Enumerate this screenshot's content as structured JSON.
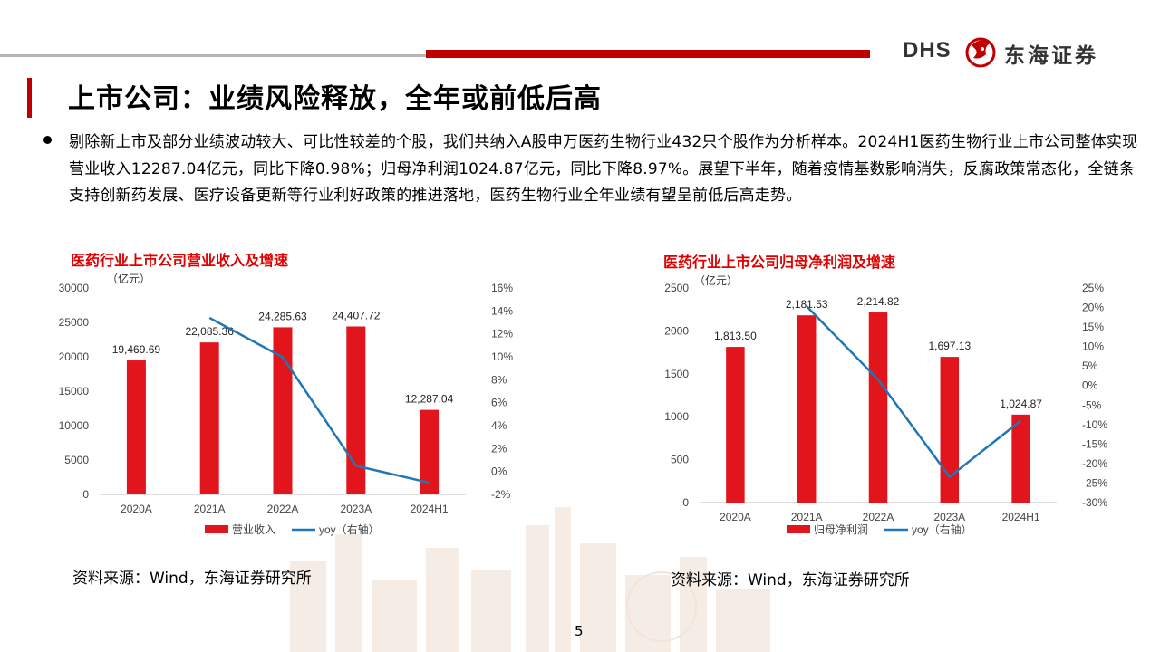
{
  "logo": {
    "brand_en": "DHS",
    "brand_cn": "东海证券"
  },
  "page_title": "上市公司：业绩风险释放，全年或前低后高",
  "bullet_text": "剔除新上市及部分业绩波动较大、可比性较差的个股，我们共纳入A股申万医药生物行业432只个股作为分析样本。2024H1医药生物行业上市公司整体实现营业收入12287.04亿元，同比下降0.98%；归母净利润1024.87亿元，同比下降8.97%。展望下半年，随着疫情基数影响消失，反腐政策常态化，全链条支持创新药发展、医疗设备更新等行业利好政策的推进落地，医药生物行业全年业绩有望呈前低后高走势。",
  "colors": {
    "bar": "#e2141c",
    "line": "#1f77b4",
    "accent": "#c00000"
  },
  "chart_data": [
    {
      "type": "bar",
      "title": "医药行业上市公司营业收入及增速",
      "unit_label": "（亿元）",
      "categories": [
        "2020A",
        "2021A",
        "2022A",
        "2023A",
        "2024H1"
      ],
      "series": [
        {
          "name": "营业收入",
          "type": "bar",
          "axis": "left",
          "values": [
            19469.69,
            22085.36,
            24285.63,
            24407.72,
            12287.04
          ],
          "labels": [
            "19,469.69",
            "22,085.36",
            "24,285.63",
            "24,407.72",
            "12,287.04"
          ]
        },
        {
          "name": "yoy（右轴）",
          "type": "line",
          "axis": "right",
          "values": [
            null,
            13.4,
            9.96,
            0.5,
            -0.98
          ]
        }
      ],
      "ylim_left": [
        0,
        30000
      ],
      "yticks_left": [
        "0",
        "5000",
        "10000",
        "15000",
        "20000",
        "25000",
        "30000"
      ],
      "ylim_right": [
        -2,
        16
      ],
      "yticks_right": [
        "-2%",
        "0%",
        "2%",
        "4%",
        "6%",
        "8%",
        "10%",
        "12%",
        "14%",
        "16%"
      ],
      "legend": "bottom",
      "source": "资料来源：Wind，东海证券研究所"
    },
    {
      "type": "bar",
      "title": "医药行业上市公司归母净利润及增速",
      "unit_label": "（亿元）",
      "categories": [
        "2020A",
        "2021A",
        "2022A",
        "2023A",
        "2024H1"
      ],
      "series": [
        {
          "name": "归母净利润",
          "type": "bar",
          "axis": "left",
          "values": [
            1813.5,
            2181.53,
            2214.82,
            1697.13,
            1024.87
          ],
          "labels": [
            "1,813.50",
            "2,181.53",
            "2,214.82",
            "1,697.13",
            "1,024.87"
          ]
        },
        {
          "name": "yoy（右轴）",
          "type": "line",
          "axis": "right",
          "values": [
            null,
            20.3,
            1.5,
            -23.4,
            -8.97
          ]
        }
      ],
      "ylim_left": [
        0,
        2500
      ],
      "yticks_left": [
        "0",
        "500",
        "1000",
        "1500",
        "2000",
        "2500"
      ],
      "ylim_right": [
        -30,
        25
      ],
      "yticks_right": [
        "-30%",
        "-25%",
        "-20%",
        "-15%",
        "-10%",
        "-5%",
        "0%",
        "5%",
        "10%",
        "15%",
        "20%",
        "25%"
      ],
      "legend": "bottom",
      "source": "资料来源：Wind，东海证券研究所"
    }
  ],
  "page_number": "5"
}
